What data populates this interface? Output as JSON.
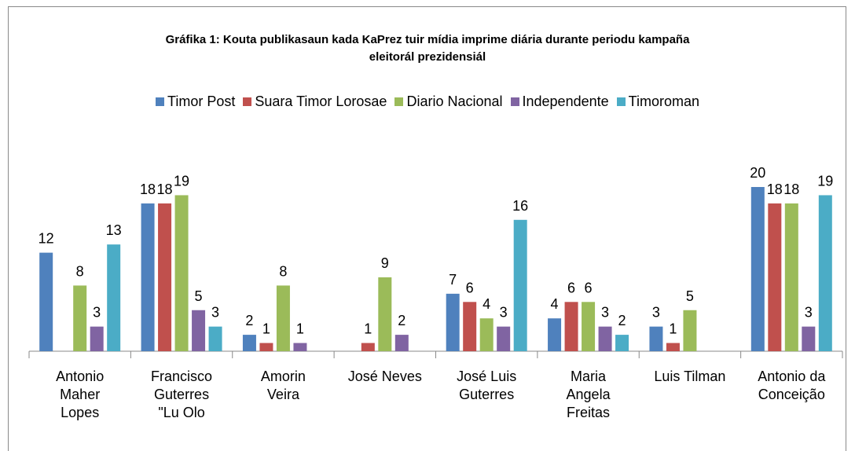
{
  "chart_data": {
    "type": "bar",
    "title": "Gráfika 1: Kouta publikasaun kada KaPrez tuir mídia imprime diária durante periodu kampaña eleitorál prezidensiál",
    "categories": [
      "Antonio Maher Lopes",
      "Francisco Guterres \"Lu Olo",
      "Amorin Veira",
      "José Neves",
      "José Luis Guterres",
      "Maria Angela Freitas",
      "Luis Tilman",
      "Antonio da Conceição"
    ],
    "series": [
      {
        "name": "Timor Post",
        "color": "#4f81bd",
        "values": [
          12,
          18,
          2,
          null,
          7,
          4,
          3,
          20
        ]
      },
      {
        "name": "Suara Timor Lorosae",
        "color": "#c0504d",
        "values": [
          null,
          18,
          1,
          1,
          6,
          6,
          1,
          18
        ]
      },
      {
        "name": "Diario Nacional",
        "color": "#9bbb59",
        "values": [
          8,
          19,
          8,
          9,
          4,
          6,
          5,
          18
        ]
      },
      {
        "name": "Independente",
        "color": "#8064a2",
        "values": [
          3,
          5,
          1,
          2,
          3,
          3,
          null,
          3
        ]
      },
      {
        "name": "Timoroman",
        "color": "#4bacc6",
        "values": [
          13,
          3,
          null,
          null,
          16,
          2,
          null,
          19
        ]
      }
    ],
    "legend": "top"
  }
}
